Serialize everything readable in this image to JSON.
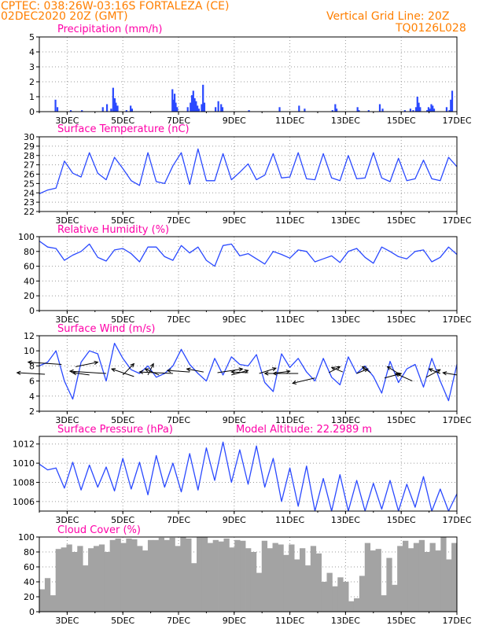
{
  "header": {
    "line1": "CPTEC:  038:26W-03:16S  FORTALEZA (CE)",
    "line2": "02DEC2020 20Z (GMT)",
    "grid_note": "Vertical Grid Line: 20Z",
    "model": "TQ0126L028"
  },
  "colors": {
    "header": "#ff7f00",
    "title": "#ff00a8",
    "series": "#2a49ff",
    "cloud": "#a3a3a3",
    "grid": "#9a9a9a",
    "axis": "#000000"
  },
  "date_labels": [
    "3DEC",
    "5DEC",
    "7DEC",
    "9DEC",
    "11DEC",
    "13DEC",
    "15DEC",
    "17DEC"
  ],
  "chart_data": [
    {
      "type": "bar",
      "title": "Precipitation (mm/h)",
      "ylim": [
        0,
        5
      ],
      "yticks": [
        "0",
        "1",
        "2",
        "3",
        "4",
        "5"
      ],
      "x_unit": "days since 02DEC2020 20Z",
      "points": [
        [
          0.55,
          0.8
        ],
        [
          0.62,
          0.3
        ],
        [
          1.1,
          0.1
        ],
        [
          1.5,
          0.1
        ],
        [
          2.25,
          0.3
        ],
        [
          2.4,
          0.5
        ],
        [
          2.55,
          0.2
        ],
        [
          2.62,
          1.6
        ],
        [
          2.68,
          0.9
        ],
        [
          2.72,
          0.6
        ],
        [
          2.78,
          0.4
        ],
        [
          3.1,
          0.1
        ],
        [
          3.25,
          0.4
        ],
        [
          3.3,
          0.2
        ],
        [
          4.75,
          1.5
        ],
        [
          4.8,
          0.8
        ],
        [
          4.83,
          1.2
        ],
        [
          4.87,
          0.6
        ],
        [
          4.92,
          0.3
        ],
        [
          5.3,
          0.3
        ],
        [
          5.4,
          0.6
        ],
        [
          5.45,
          1.1
        ],
        [
          5.5,
          1.4
        ],
        [
          5.55,
          0.9
        ],
        [
          5.6,
          0.7
        ],
        [
          5.65,
          0.4
        ],
        [
          5.7,
          0.2
        ],
        [
          5.8,
          0.5
        ],
        [
          5.85,
          1.8
        ],
        [
          5.9,
          0.6
        ],
        [
          6.3,
          0.3
        ],
        [
          6.4,
          0.7
        ],
        [
          6.5,
          0.5
        ],
        [
          6.55,
          0.3
        ],
        [
          7.5,
          0.1
        ],
        [
          8.6,
          0.3
        ],
        [
          9.3,
          0.4
        ],
        [
          9.5,
          0.2
        ],
        [
          10.5,
          0.1
        ],
        [
          10.6,
          0.5
        ],
        [
          10.65,
          0.2
        ],
        [
          11.4,
          0.3
        ],
        [
          11.45,
          0.1
        ],
        [
          11.8,
          0.1
        ],
        [
          12.2,
          0.5
        ],
        [
          12.3,
          0.2
        ],
        [
          13.1,
          0.1
        ],
        [
          13.3,
          0.2
        ],
        [
          13.4,
          0.1
        ],
        [
          13.5,
          0.3
        ],
        [
          13.55,
          1.0
        ],
        [
          13.6,
          0.6
        ],
        [
          13.65,
          0.3
        ],
        [
          13.9,
          0.1
        ],
        [
          13.95,
          0.3
        ],
        [
          14.0,
          0.2
        ],
        [
          14.05,
          0.5
        ],
        [
          14.1,
          0.4
        ],
        [
          14.15,
          0.2
        ],
        [
          14.6,
          0.3
        ],
        [
          14.7,
          0.1
        ],
        [
          14.75,
          0.8
        ],
        [
          14.8,
          1.4
        ]
      ]
    },
    {
      "type": "line",
      "title": "Surface Temperature (nC)",
      "ylim": [
        22,
        30
      ],
      "yticks": [
        "22",
        "23",
        "24",
        "25",
        "26",
        "27",
        "28",
        "29",
        "30"
      ],
      "series": [
        {
          "values": [
            23.9,
            24.3,
            24.5,
            27.4,
            26.1,
            25.7,
            28.3,
            26.1,
            25.4,
            27.8,
            26.6,
            25.3,
            24.8,
            28.3,
            25.2,
            25.0,
            26.9,
            28.3,
            24.9,
            28.7,
            25.3,
            25.3,
            28.2,
            25.4,
            26.2,
            27.1,
            25.4,
            25.9,
            28.2,
            25.6,
            25.7,
            28.3,
            25.5,
            25.4,
            28.2,
            25.6,
            25.3,
            28.0,
            25.5,
            25.6,
            28.3,
            25.6,
            25.2,
            27.7,
            25.3,
            25.5,
            27.5,
            25.5,
            25.3,
            27.8,
            26.8
          ]
        }
      ]
    },
    {
      "type": "line",
      "title": "Relative Humidity (%)",
      "ylim": [
        0,
        100
      ],
      "yticks": [
        "0",
        "20",
        "40",
        "60",
        "80",
        "100"
      ],
      "series": [
        {
          "values": [
            94,
            86,
            84,
            68,
            75,
            80,
            90,
            72,
            67,
            82,
            84,
            77,
            66,
            86,
            86,
            73,
            68,
            88,
            78,
            86,
            68,
            60,
            88,
            90,
            74,
            77,
            70,
            63,
            80,
            76,
            71,
            82,
            80,
            66,
            70,
            74,
            65,
            80,
            84,
            72,
            64,
            86,
            80,
            73,
            70,
            80,
            82,
            66,
            72,
            86,
            76
          ]
        }
      ]
    },
    {
      "type": "line",
      "title": "Surface Wind (m/s)",
      "ylim": [
        2,
        12
      ],
      "yticks": [
        "2",
        "4",
        "6",
        "8",
        "10",
        "12"
      ],
      "series": [
        {
          "values": [
            8.0,
            8.5,
            10.0,
            6.0,
            3.6,
            8.5,
            10.0,
            9.6,
            6.0,
            11.0,
            9.0,
            7.5,
            7.0,
            8.0,
            6.5,
            7.0,
            8.0,
            10.2,
            8.2,
            7.0,
            6.0,
            9.0,
            6.8,
            9.2,
            8.2,
            8.0,
            9.5,
            5.8,
            4.6,
            9.6,
            7.8,
            9.0,
            7.2,
            6.0,
            9.0,
            6.5,
            5.5,
            9.2,
            7.0,
            8.0,
            6.6,
            4.4,
            8.6,
            5.8,
            7.6,
            8.2,
            5.2,
            9.0,
            6.0,
            3.4,
            8.2
          ]
        }
      ],
      "vectors": [
        [
          0.2,
          6.9,
          -1.0,
          0.2
        ],
        [
          0.8,
          8.2,
          -1.2,
          0.3
        ],
        [
          1.3,
          7.9,
          0.8,
          0.6
        ],
        [
          1.8,
          6.8,
          -0.6,
          0.3
        ],
        [
          2.4,
          7.0,
          -1.3,
          0.3
        ],
        [
          3.0,
          6.8,
          0.4,
          1.5
        ],
        [
          3.4,
          6.6,
          -0.8,
          1.0
        ],
        [
          3.9,
          6.8,
          0.2,
          1.5
        ],
        [
          4.3,
          6.8,
          -0.5,
          0.8
        ],
        [
          4.8,
          7.0,
          -1.2,
          0.2
        ],
        [
          5.4,
          7.2,
          -0.8,
          0.2
        ],
        [
          5.9,
          7.2,
          -0.6,
          0.4
        ],
        [
          6.4,
          7.1,
          0.9,
          0.5
        ],
        [
          6.9,
          6.8,
          0.6,
          0.6
        ],
        [
          7.5,
          7.1,
          -0.6,
          0.1
        ],
        [
          7.9,
          7.0,
          0.6,
          0.7
        ],
        [
          8.4,
          7.0,
          0.6,
          0.3
        ],
        [
          8.9,
          7.0,
          -0.8,
          0.0
        ],
        [
          9.3,
          7.0,
          -0.9,
          0.0
        ],
        [
          9.9,
          6.4,
          -0.8,
          -0.7
        ],
        [
          10.4,
          7.1,
          0.4,
          0.8
        ],
        [
          10.9,
          7.2,
          -0.4,
          0.6
        ],
        [
          11.4,
          7.0,
          0.4,
          0.6
        ],
        [
          11.9,
          7.1,
          -0.3,
          0.8
        ],
        [
          12.4,
          6.4,
          0.6,
          0.6
        ],
        [
          12.9,
          7.0,
          -0.4,
          0.9
        ],
        [
          13.4,
          6.0,
          -0.6,
          1.0
        ],
        [
          13.9,
          6.5,
          0.5,
          1.0
        ],
        [
          14.4,
          7.0,
          -0.4,
          0.6
        ],
        [
          15.0,
          6.8,
          -0.5,
          0.3
        ]
      ]
    },
    {
      "type": "line",
      "title": "Surface Pressure (hPa)",
      "annotation": "Model Altitude: 22.2989  m",
      "ylim": [
        1005,
        1012.8
      ],
      "yticks": [
        "1006",
        "1008",
        "1010",
        "1012"
      ],
      "series": [
        {
          "values": [
            1009.9,
            1009.3,
            1009.5,
            1007.4,
            1010.1,
            1007.2,
            1009.8,
            1007.5,
            1009.6,
            1007.1,
            1010.5,
            1007.3,
            1010.1,
            1006.7,
            1010.8,
            1007.5,
            1010.0,
            1007.0,
            1011.0,
            1007.2,
            1011.6,
            1008.2,
            1012.2,
            1008.0,
            1011.4,
            1007.8,
            1011.8,
            1007.5,
            1010.5,
            1006.0,
            1009.5,
            1005.5,
            1009.7,
            1004.8,
            1008.4,
            1004.8,
            1008.8,
            1004.8,
            1008.2,
            1005.0,
            1007.9,
            1005.2,
            1008.2,
            1005.0,
            1007.8,
            1005.4,
            1008.6,
            1004.8,
            1007.3,
            1005.0,
            1006.8
          ]
        }
      ]
    },
    {
      "type": "bar",
      "title": "Cloud Cover (%)",
      "ylim": [
        0,
        100
      ],
      "yticks": [
        "0",
        "20",
        "40",
        "60",
        "80",
        "100"
      ],
      "series": [
        {
          "values": [
            30,
            45,
            22,
            84,
            86,
            90,
            80,
            88,
            62,
            85,
            88,
            90,
            80,
            96,
            98,
            92,
            98,
            97,
            88,
            82,
            96,
            96,
            99,
            96,
            99,
            88,
            100,
            98,
            65,
            100,
            100,
            92,
            96,
            94,
            98,
            86,
            96,
            95,
            85,
            80,
            52,
            95,
            85,
            92,
            90,
            76,
            90,
            70,
            85,
            62,
            88,
            78,
            40,
            52,
            34,
            46,
            40,
            14,
            18,
            48,
            92,
            82,
            84,
            22,
            72,
            36,
            88,
            95,
            85,
            92,
            96,
            80,
            92,
            82,
            100,
            70,
            92
          ]
        }
      ]
    }
  ]
}
